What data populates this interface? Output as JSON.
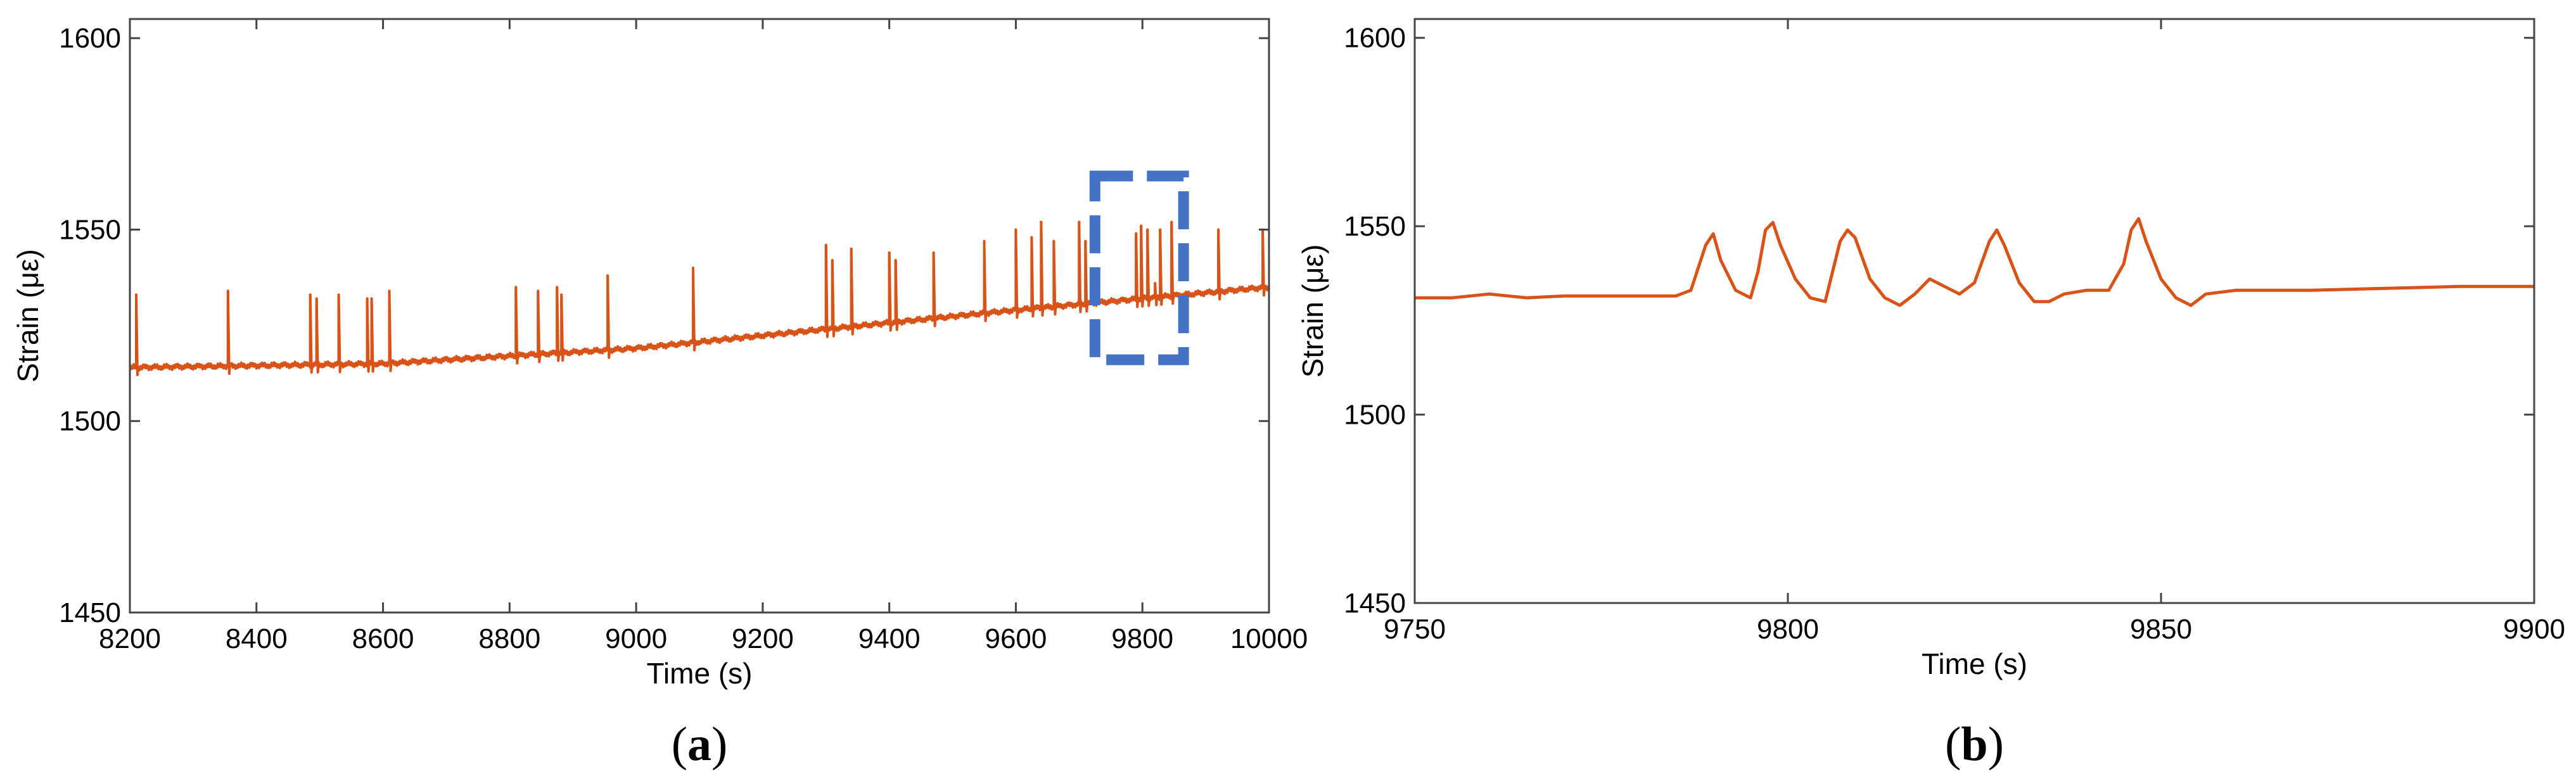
{
  "chart_data": [
    {
      "panel_label": "(a)",
      "panel_label_letter": "a",
      "type": "line",
      "xlabel": "Time (s)",
      "ylabel": "Strain (με)",
      "xlim": [
        8200,
        10000
      ],
      "ylim": [
        1450,
        1605
      ],
      "xticks": [
        8200,
        8400,
        8600,
        8800,
        9000,
        9200,
        9400,
        9600,
        9800,
        10000
      ],
      "yticks": [
        1450,
        1500,
        1550,
        1600
      ],
      "grid": false,
      "line_color": "#d95319",
      "baseline": [
        [
          8200,
          1514
        ],
        [
          8600,
          1515
        ],
        [
          9000,
          1519
        ],
        [
          9300,
          1524
        ],
        [
          9600,
          1529
        ],
        [
          9800,
          1532
        ],
        [
          10000,
          1535
        ]
      ],
      "spikes": [
        {
          "t": 8210,
          "peak": 1533
        },
        {
          "t": 8355,
          "peak": 1534
        },
        {
          "t": 8485,
          "peak": 1533
        },
        {
          "t": 8495,
          "peak": 1532
        },
        {
          "t": 8530,
          "peak": 1533
        },
        {
          "t": 8575,
          "peak": 1532
        },
        {
          "t": 8582,
          "peak": 1532
        },
        {
          "t": 8610,
          "peak": 1534
        },
        {
          "t": 8810,
          "peak": 1535
        },
        {
          "t": 8845,
          "peak": 1534
        },
        {
          "t": 8875,
          "peak": 1535
        },
        {
          "t": 8882,
          "peak": 1533
        },
        {
          "t": 8955,
          "peak": 1538
        },
        {
          "t": 9090,
          "peak": 1540
        },
        {
          "t": 9300,
          "peak": 1546
        },
        {
          "t": 9310,
          "peak": 1542
        },
        {
          "t": 9340,
          "peak": 1545
        },
        {
          "t": 9400,
          "peak": 1544
        },
        {
          "t": 9410,
          "peak": 1542
        },
        {
          "t": 9470,
          "peak": 1544
        },
        {
          "t": 9550,
          "peak": 1547
        },
        {
          "t": 9600,
          "peak": 1550
        },
        {
          "t": 9625,
          "peak": 1548
        },
        {
          "t": 9640,
          "peak": 1552
        },
        {
          "t": 9660,
          "peak": 1547
        },
        {
          "t": 9700,
          "peak": 1552
        },
        {
          "t": 9710,
          "peak": 1547
        },
        {
          "t": 9790,
          "peak": 1549
        },
        {
          "t": 9798,
          "peak": 1551
        },
        {
          "t": 9808,
          "peak": 1550
        },
        {
          "t": 9820,
          "peak": 1536
        },
        {
          "t": 9828,
          "peak": 1550
        },
        {
          "t": 9846,
          "peak": 1552
        },
        {
          "t": 9920,
          "peak": 1550
        },
        {
          "t": 9990,
          "peak": 1550
        }
      ],
      "highlight_box": {
        "x": [
          9725,
          9865
        ],
        "y": [
          1516,
          1564
        ],
        "color": "#4472c4"
      }
    },
    {
      "panel_label": "(b)",
      "panel_label_letter": "b",
      "type": "line",
      "xlabel": "Time (s)",
      "ylabel": "Strain (με)",
      "xlim": [
        9750,
        9900
      ],
      "ylim": [
        1450,
        1605
      ],
      "xticks": [
        9750,
        9800,
        9850,
        9900
      ],
      "yticks": [
        1450,
        1500,
        1550,
        1600
      ],
      "grid": false,
      "line_color": "#d95319",
      "points": [
        [
          9750,
          1531
        ],
        [
          9755,
          1531
        ],
        [
          9760,
          1532
        ],
        [
          9765,
          1531
        ],
        [
          9770,
          1531.5
        ],
        [
          9775,
          1531.5
        ],
        [
          9780,
          1531.5
        ],
        [
          9785,
          1531.5
        ],
        [
          9787,
          1533
        ],
        [
          9789,
          1545
        ],
        [
          9790,
          1548
        ],
        [
          9791,
          1541
        ],
        [
          9793,
          1533
        ],
        [
          9795,
          1531
        ],
        [
          9796,
          1538
        ],
        [
          9797,
          1549
        ],
        [
          9798,
          1551
        ],
        [
          9799,
          1545
        ],
        [
          9801,
          1536
        ],
        [
          9803,
          1531
        ],
        [
          9805,
          1530
        ],
        [
          9807,
          1546
        ],
        [
          9808,
          1549
        ],
        [
          9809,
          1547
        ],
        [
          9811,
          1536
        ],
        [
          9813,
          1531
        ],
        [
          9815,
          1529
        ],
        [
          9817,
          1532
        ],
        [
          9819,
          1536
        ],
        [
          9821,
          1534
        ],
        [
          9823,
          1532
        ],
        [
          9825,
          1535
        ],
        [
          9827,
          1546
        ],
        [
          9828,
          1549
        ],
        [
          9829,
          1545
        ],
        [
          9831,
          1535
        ],
        [
          9833,
          1530
        ],
        [
          9835,
          1530
        ],
        [
          9837,
          1532
        ],
        [
          9840,
          1533
        ],
        [
          9843,
          1533
        ],
        [
          9845,
          1540
        ],
        [
          9846,
          1549
        ],
        [
          9847,
          1552
        ],
        [
          9848,
          1546
        ],
        [
          9850,
          1536
        ],
        [
          9852,
          1531
        ],
        [
          9854,
          1529
        ],
        [
          9856,
          1532
        ],
        [
          9860,
          1533
        ],
        [
          9870,
          1533
        ],
        [
          9880,
          1533.5
        ],
        [
          9890,
          1534
        ],
        [
          9900,
          1534
        ]
      ]
    }
  ]
}
